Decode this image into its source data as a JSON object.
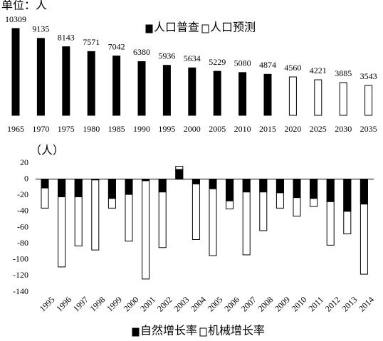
{
  "chart_data": [
    {
      "type": "bar",
      "unit_label": "单位：人",
      "categories": [
        "1965",
        "1970",
        "1975",
        "1980",
        "1985",
        "1990",
        "1995",
        "2000",
        "2005",
        "2010",
        "2015",
        "2020",
        "2025",
        "2030",
        "2035"
      ],
      "series": [
        {
          "name": "人口普查",
          "color": "#000000",
          "values": [
            10309,
            9135,
            8143,
            7571,
            7042,
            6380,
            5936,
            5634,
            5229,
            5080,
            4874,
            null,
            null,
            null,
            null
          ]
        },
        {
          "name": "人口预测",
          "color": "#ffffff",
          "values": [
            null,
            null,
            null,
            null,
            null,
            null,
            null,
            null,
            null,
            null,
            null,
            4560,
            4221,
            3885,
            3543
          ]
        }
      ]
    },
    {
      "type": "overlap-bar",
      "y_label": "（人）",
      "categories": [
        "1995",
        "1996",
        "1997",
        "1998",
        "1999",
        "2000",
        "2001",
        "2002",
        "2003",
        "2004",
        "2005",
        "2006",
        "2007",
        "2008",
        "2009",
        "2010",
        "2011",
        "2012",
        "2013",
        "2014"
      ],
      "series": [
        {
          "name": "自然增长率",
          "color": "#000000",
          "values": [
            -11,
            -22,
            -22,
            -1,
            -24,
            -19,
            -2,
            -16,
            12,
            -6,
            -12,
            -27,
            -16,
            -16,
            -17,
            -23,
            -24,
            -28,
            -40,
            -31
          ]
        },
        {
          "name": "机械增长率",
          "color": "#ffffff",
          "values": [
            -36,
            -109,
            -83,
            -88,
            -36,
            -77,
            -124,
            -85,
            16,
            -75,
            -95,
            -37,
            -94,
            -64,
            -36,
            -46,
            -34,
            -82,
            -68,
            -118
          ]
        }
      ],
      "ylim": [
        -140,
        20
      ],
      "yticks": [
        20,
        0,
        -20,
        -40,
        -60,
        -80,
        -100,
        -120,
        -140
      ]
    }
  ]
}
